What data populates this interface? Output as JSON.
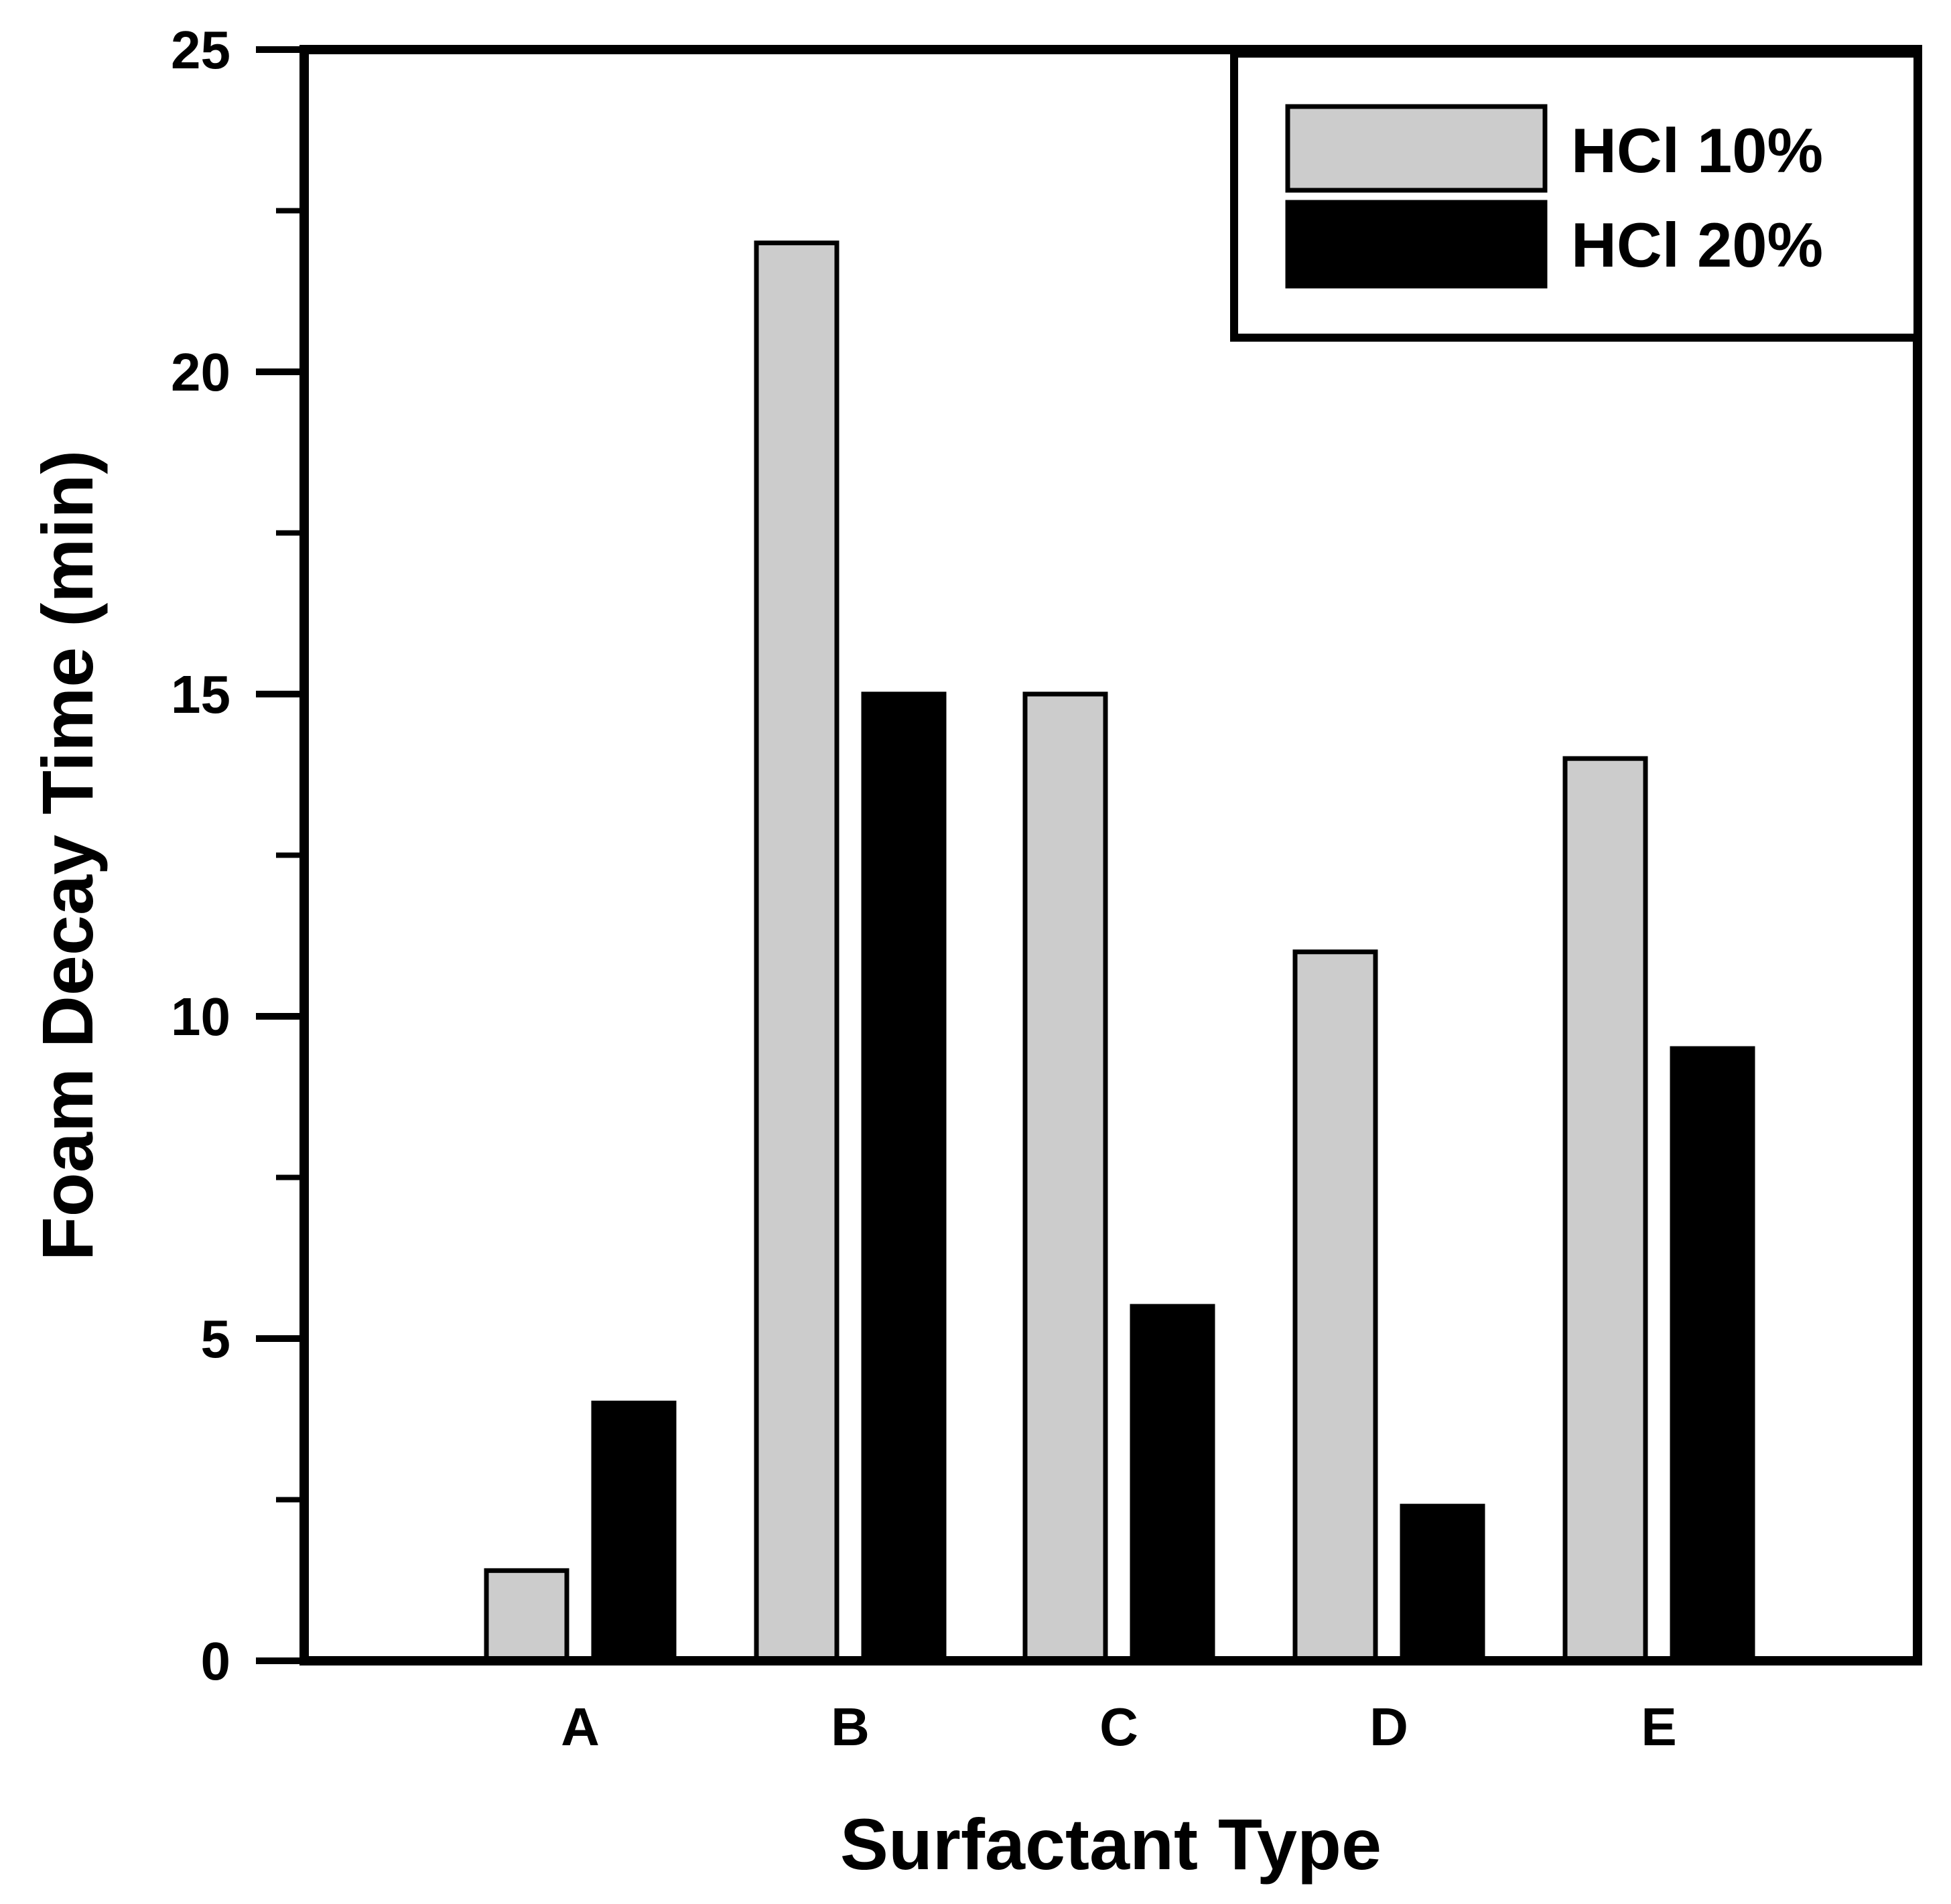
{
  "chart_data": {
    "type": "bar",
    "title": "",
    "xlabel": "Surfactant Type",
    "ylabel": "Foam Decay Time (min)",
    "categories": [
      "A",
      "B",
      "C",
      "D",
      "E"
    ],
    "series": [
      {
        "name": "HCl 10%",
        "values": [
          1.4,
          22.0,
          15.0,
          11.0,
          14.0
        ],
        "color": "#cccccc"
      },
      {
        "name": "HCl 20%",
        "values": [
          4.0,
          15.0,
          5.5,
          2.4,
          9.5
        ],
        "color": "#000000"
      }
    ],
    "ylim": [
      0,
      25
    ],
    "yticks": [
      0,
      5,
      10,
      15,
      20,
      25
    ],
    "yticks_minor": [
      2.5,
      7.5,
      12.5,
      17.5,
      22.5
    ],
    "grid": false,
    "legend_position": "top-right"
  }
}
